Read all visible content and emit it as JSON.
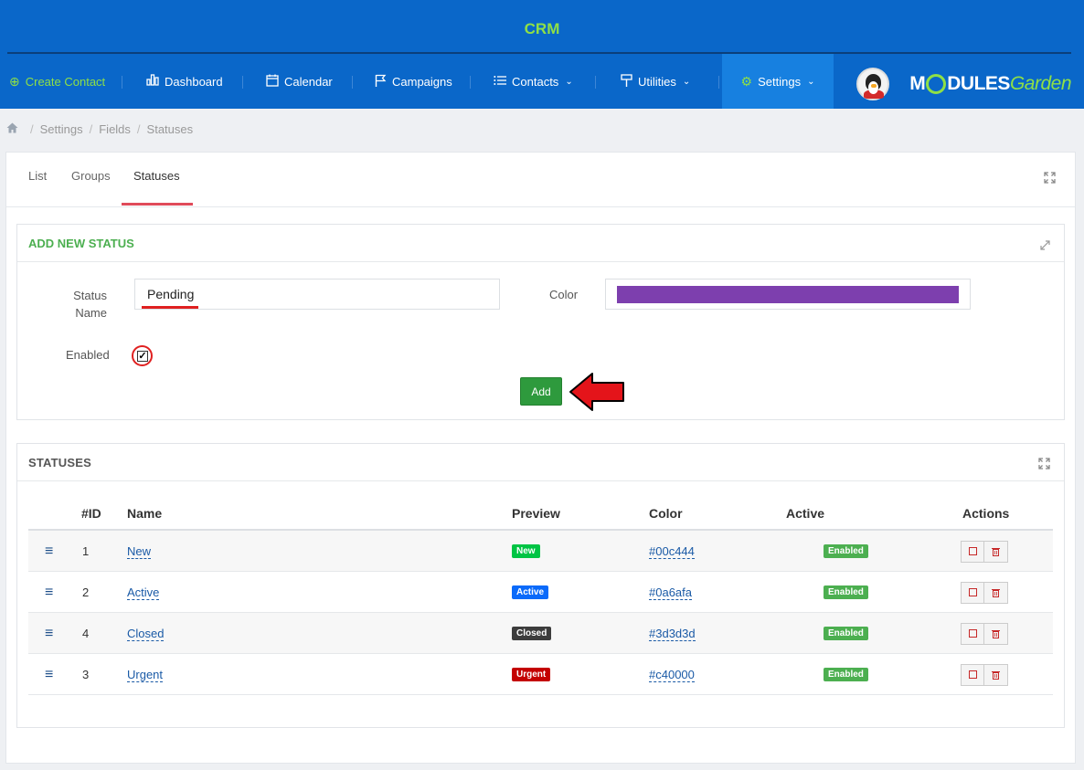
{
  "header": {
    "app_title": "CRM",
    "brand_logo_text_1": "M",
    "brand_logo_text_2": "DULES",
    "brand_logo_text_3": "Garden"
  },
  "nav": {
    "create_contact": "Create Contact",
    "dashboard": "Dashboard",
    "calendar": "Calendar",
    "campaigns": "Campaigns",
    "contacts": "Contacts",
    "utilities": "Utilities",
    "settings": "Settings"
  },
  "breadcrumb": {
    "items": [
      "Settings",
      "Fields",
      "Statuses"
    ]
  },
  "tabs": [
    "List",
    "Groups",
    "Statuses"
  ],
  "add_form": {
    "title": "ADD NEW STATUS",
    "status_name_label_line1": "Status",
    "status_name_label_line2": "Name",
    "status_name_value": "Pending",
    "color_label": "Color",
    "color_value": "#7d3fae",
    "enabled_label": "Enabled",
    "enabled_checked": true,
    "add_button": "Add"
  },
  "statuses": {
    "title": "STATUSES",
    "columns": [
      "#ID",
      "Name",
      "Preview",
      "Color",
      "Active",
      "Actions"
    ],
    "rows": [
      {
        "id": "1",
        "name": "New",
        "preview": "New",
        "color": "#00c444",
        "active": "Enabled"
      },
      {
        "id": "2",
        "name": "Active",
        "preview": "Active",
        "color": "#0a6afa",
        "active": "Enabled"
      },
      {
        "id": "4",
        "name": "Closed",
        "preview": "Closed",
        "color": "#3d3d3d",
        "active": "Enabled"
      },
      {
        "id": "3",
        "name": "Urgent",
        "preview": "Urgent",
        "color": "#c40000",
        "active": "Enabled"
      }
    ]
  },
  "colors": {
    "header_bg": "#0a67c9",
    "settings_active_bg": "#1780e0",
    "accent_green": "#8fe046",
    "add_button_bg": "#2e9a3d",
    "tab_active_underline": "#e04b5a"
  }
}
